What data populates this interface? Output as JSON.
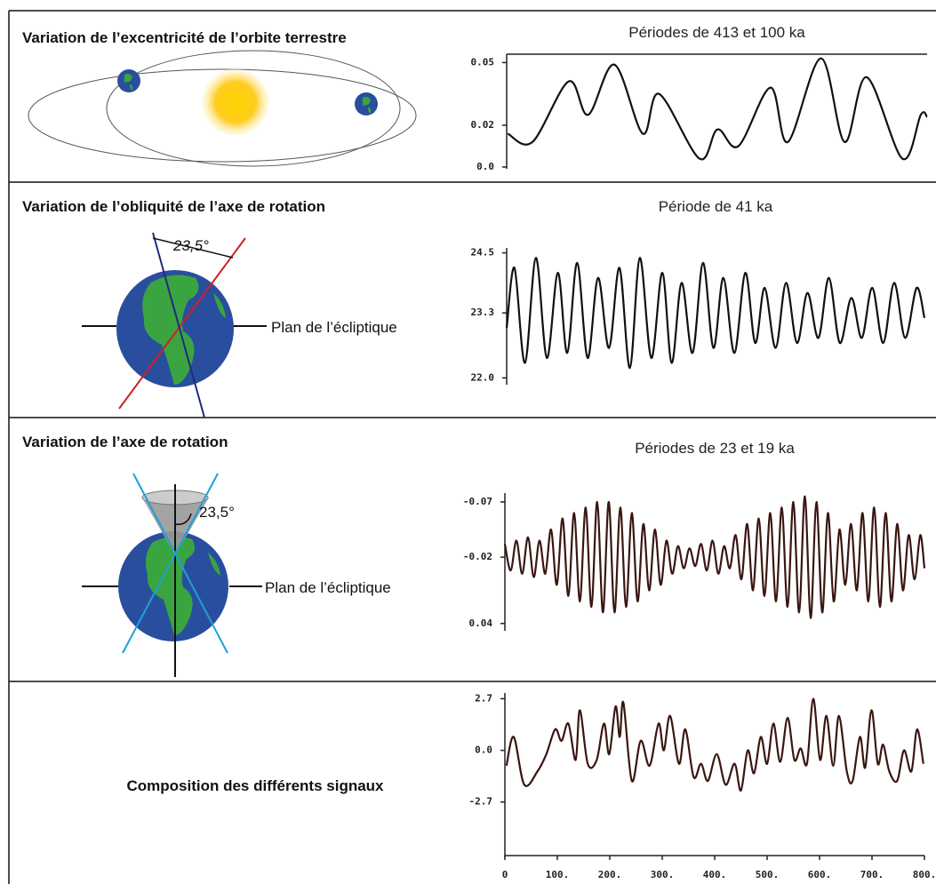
{
  "panels": [
    {
      "title": "Variation de l’excentricité de l’orbite terrestre"
    },
    {
      "title": "Variation de l’obliquité de l’axe de rotation",
      "angle": "23,5°",
      "plane": "Plan de l’écliptique"
    },
    {
      "title": "Variation de l’axe de rotation",
      "angle": "23,5°",
      "plane": "Plan de l’écliptique"
    },
    {
      "title": "Composition des différents signaux"
    }
  ],
  "chart_data": [
    {
      "type": "line",
      "title": "Périodes de 413 et 100 ka",
      "x": [
        2,
        49,
        118,
        155,
        205,
        259,
        290,
        367,
        401,
        441,
        502,
        535,
        598,
        643,
        685,
        753,
        788,
        800
      ],
      "series": [
        {
          "color": "#111111",
          "values": [
            0.016,
            0.012,
            0.041,
            0.025,
            0.049,
            0.016,
            0.035,
            0.004,
            0.018,
            0.01,
            0.038,
            0.012,
            0.052,
            0.012,
            0.043,
            0.004,
            0.025,
            0.024
          ]
        }
      ],
      "xlim": [
        0,
        800
      ],
      "ylim": [
        0,
        0.054
      ],
      "yticks": [
        {
          "value": 0,
          "label": "0.0"
        },
        0.02,
        0.05
      ]
    },
    {
      "type": "line",
      "title": "Période de 41 ka",
      "x": [
        0,
        15,
        35,
        56,
        77,
        98,
        116,
        135,
        155,
        175,
        196,
        216,
        236,
        255,
        277,
        298,
        316,
        335,
        356,
        376,
        396,
        415,
        436,
        457,
        476,
        494,
        515,
        535,
        556,
        576,
        597,
        617,
        638,
        660,
        680,
        700,
        721,
        742,
        763,
        785,
        800
      ],
      "series": [
        {
          "color": "#111111",
          "values": [
            23.0,
            24.2,
            22.3,
            24.4,
            22.4,
            24.1,
            22.5,
            24.3,
            22.4,
            24.0,
            22.6,
            24.2,
            22.2,
            24.4,
            22.4,
            24.1,
            22.3,
            23.9,
            22.5,
            24.3,
            22.6,
            24.0,
            22.5,
            24.1,
            22.7,
            23.8,
            22.6,
            23.9,
            22.7,
            23.7,
            22.8,
            24.0,
            22.7,
            23.6,
            22.8,
            23.8,
            22.7,
            23.9,
            22.8,
            23.8,
            23.2
          ]
        }
      ],
      "xlim": [
        0,
        800
      ],
      "ylim": [
        21.9,
        24.6
      ],
      "yticks": [
        {
          "value": 22,
          "label": "22.0"
        },
        23.3,
        24.5
      ]
    },
    {
      "type": "line",
      "title": "Périodes de 23 et 19 ka",
      "x": [
        0,
        11,
        22,
        33,
        44,
        55,
        66,
        77,
        88,
        99,
        110,
        121,
        132,
        143,
        154,
        165,
        176,
        187,
        198,
        209,
        220,
        231,
        242,
        253,
        264,
        275,
        286,
        297,
        308,
        319,
        330,
        341,
        352,
        363,
        374,
        385,
        396,
        407,
        418,
        429,
        440,
        451,
        462,
        473,
        484,
        495,
        506,
        517,
        528,
        539,
        550,
        561,
        572,
        583,
        594,
        605,
        616,
        627,
        638,
        649,
        660,
        671,
        682,
        693,
        704,
        715,
        726,
        737,
        748,
        759,
        770,
        781,
        792,
        800
      ],
      "series": [
        {
          "color": "#3a1610",
          "values": [
            -0.032,
            -0.008,
            -0.035,
            -0.005,
            -0.038,
            -0.002,
            -0.035,
            -0.005,
            -0.045,
            0.005,
            -0.055,
            0.015,
            -0.06,
            0.02,
            -0.065,
            0.025,
            -0.07,
            0.03,
            -0.07,
            0.03,
            -0.065,
            0.025,
            -0.06,
            0.02,
            -0.05,
            0.01,
            -0.045,
            0.005,
            -0.035,
            -0.005,
            -0.03,
            -0.01,
            -0.028,
            -0.012,
            -0.032,
            -0.008,
            -0.035,
            -0.005,
            -0.03,
            -0.01,
            -0.04,
            0,
            -0.05,
            0.01,
            -0.055,
            0.015,
            -0.06,
            0.02,
            -0.065,
            0.025,
            -0.07,
            0.03,
            -0.075,
            0.035,
            -0.07,
            0.03,
            -0.06,
            0.02,
            -0.045,
            0.005,
            -0.05,
            0.01,
            -0.06,
            0.02,
            -0.065,
            0.025,
            -0.06,
            0.02,
            -0.05,
            0.01,
            -0.04,
            0,
            -0.04,
            -0.01
          ]
        }
      ],
      "xlim": [
        0,
        800
      ],
      "ylim": [
        0.045,
        -0.078
      ],
      "yticks": [
        -0.07,
        -0.02,
        0.04
      ]
    },
    {
      "type": "line",
      "x": [
        3,
        17,
        37,
        62,
        79,
        96,
        108,
        121,
        135,
        143,
        158,
        175,
        189,
        199,
        211,
        219,
        226,
        242,
        259,
        276,
        293,
        303,
        315,
        332,
        344,
        360,
        374,
        387,
        404,
        421,
        438,
        450,
        463,
        475,
        488,
        500,
        512,
        525,
        539,
        552,
        564,
        576,
        588,
        601,
        613,
        626,
        637,
        652,
        663,
        677,
        687,
        699,
        711,
        721,
        733,
        748,
        761,
        775,
        786,
        798
      ],
      "series": [
        {
          "color": "#3a1610",
          "values": [
            -0.8,
            0.7,
            -1.8,
            -1.1,
            -0.2,
            1.1,
            0.5,
            1.4,
            -0.5,
            2.1,
            -0.7,
            -0.5,
            1.4,
            -0.2,
            2.3,
            0.7,
            2.5,
            -1.6,
            0.5,
            -0.8,
            1.4,
            0,
            1.8,
            -0.7,
            1.1,
            -1.4,
            -0.7,
            -1.6,
            -0.2,
            -1.8,
            -0.7,
            -2.1,
            0,
            -1.2,
            0.7,
            -0.7,
            1.4,
            -0.6,
            1.7,
            -0.5,
            0.1,
            -0.7,
            2.7,
            -0.5,
            1.8,
            -0.8,
            1.8,
            -1.1,
            -1.6,
            0.7,
            -0.9,
            2.1,
            -0.7,
            0.3,
            -1.1,
            -1.6,
            0,
            -1.1,
            1.1,
            -0.7
          ]
        }
      ],
      "xlim": [
        0,
        800
      ],
      "ylim": [
        -5.5,
        3.0
      ],
      "yticks": [
        {
          "value": -2.7,
          "label": "-2.7"
        },
        {
          "value": 0,
          "label": "0.0"
        },
        2.7
      ],
      "xticks": [
        0,
        {
          "value": 100,
          "label": "100."
        },
        {
          "value": 200,
          "label": "200."
        },
        {
          "value": 300,
          "label": "300."
        },
        {
          "value": 400,
          "label": "400."
        },
        {
          "value": 500,
          "label": "500."
        },
        {
          "value": 600,
          "label": "600."
        },
        {
          "value": 700,
          "label": "700."
        },
        {
          "value": 800,
          "label": "800."
        }
      ]
    }
  ]
}
